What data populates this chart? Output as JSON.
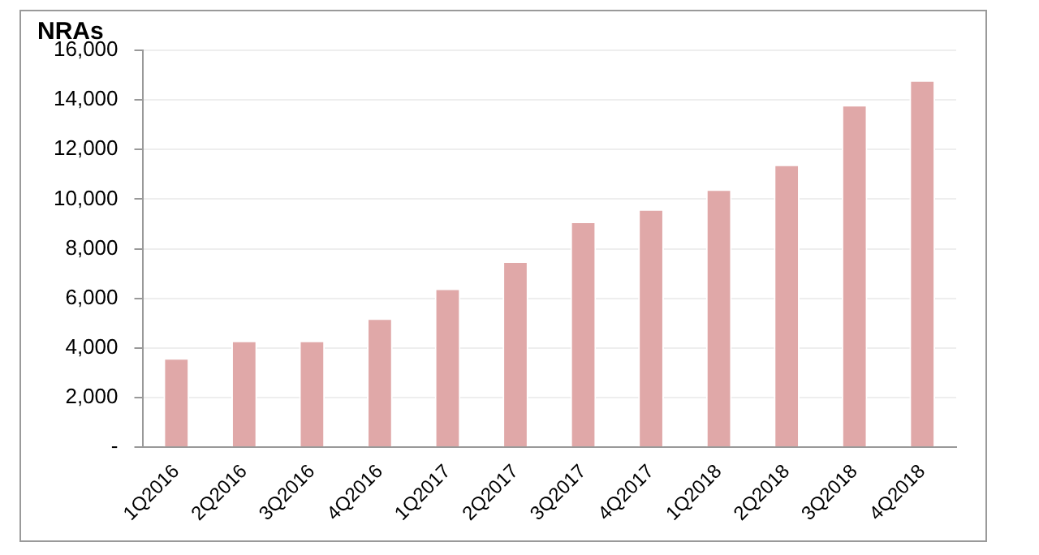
{
  "chart_data": {
    "type": "bar",
    "ylabel": "NRAs",
    "categories": [
      "1Q2016",
      "2Q2016",
      "3Q2016",
      "4Q2016",
      "1Q2017",
      "2Q2017",
      "3Q2017",
      "4Q2017",
      "1Q2018",
      "2Q2018",
      "3Q2018",
      "4Q2018"
    ],
    "values": [
      3600,
      4300,
      4300,
      5200,
      6400,
      7500,
      9100,
      9600,
      10400,
      11400,
      13800,
      14800
    ],
    "color": "#e0a8a8",
    "ylim": [
      0,
      16000
    ],
    "yticks": [
      {
        "value": 0,
        "label": "-"
      },
      {
        "value": 2000,
        "label": "2,000"
      },
      {
        "value": 4000,
        "label": "4,000"
      },
      {
        "value": 6000,
        "label": "6,000"
      },
      {
        "value": 8000,
        "label": "8,000"
      },
      {
        "value": 10000,
        "label": "10,000"
      },
      {
        "value": 12000,
        "label": "12,000"
      },
      {
        "value": 14000,
        "label": "14,000"
      },
      {
        "value": 16000,
        "label": "16,000"
      }
    ],
    "grid": "y"
  }
}
